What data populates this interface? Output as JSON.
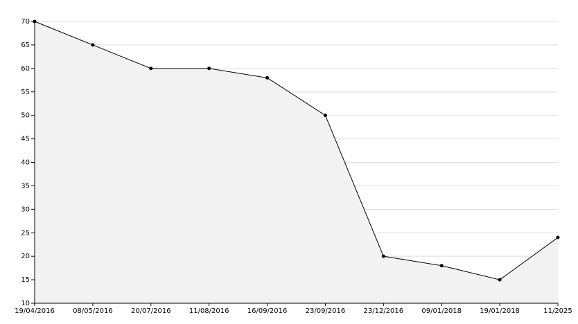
{
  "chart_data": {
    "type": "area",
    "categories": [
      "19/04/2016",
      "08/05/2016",
      "20/07/2016",
      "11/08/2016",
      "16/09/2016",
      "23/09/2016",
      "23/12/2016",
      "09/01/2018",
      "19/01/2018",
      "11/2025"
    ],
    "values": [
      70,
      65,
      60,
      60,
      58,
      50,
      20,
      18,
      15,
      24
    ],
    "color": "#000000",
    "fill": "#f2f2f2",
    "ylim": [
      10,
      70
    ],
    "yticks": [
      10,
      15,
      20,
      25,
      30,
      35,
      40,
      45,
      50,
      55,
      60,
      65,
      70
    ],
    "grid": true
  }
}
